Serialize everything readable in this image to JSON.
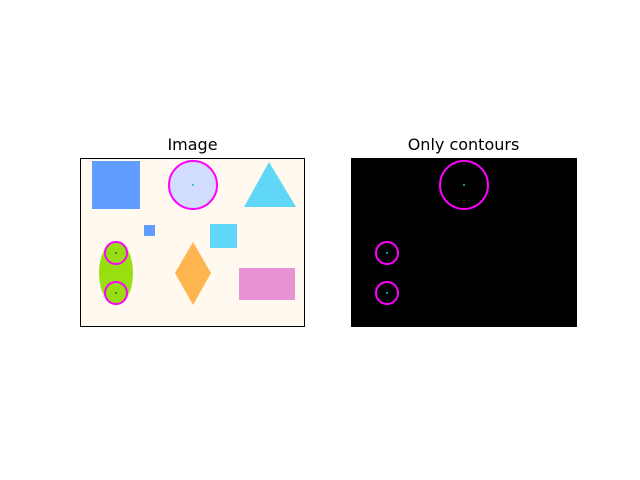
{
  "figure": {
    "panels": [
      {
        "title": "Image"
      },
      {
        "title": "Only contours"
      }
    ]
  },
  "colors": {
    "image_background": "#fff9f0",
    "contour_background": "#000000",
    "contour_stroke": "#ff00ff",
    "center_dot": "#17becf",
    "blue_square": "#619cff",
    "light_blue_circle": "#d1dcff",
    "cyan": "#60d7f7",
    "green_ellipse": "#97df10",
    "orange_diamond": "#ffb54f",
    "pink_rectangle": "#e892d4"
  }
}
